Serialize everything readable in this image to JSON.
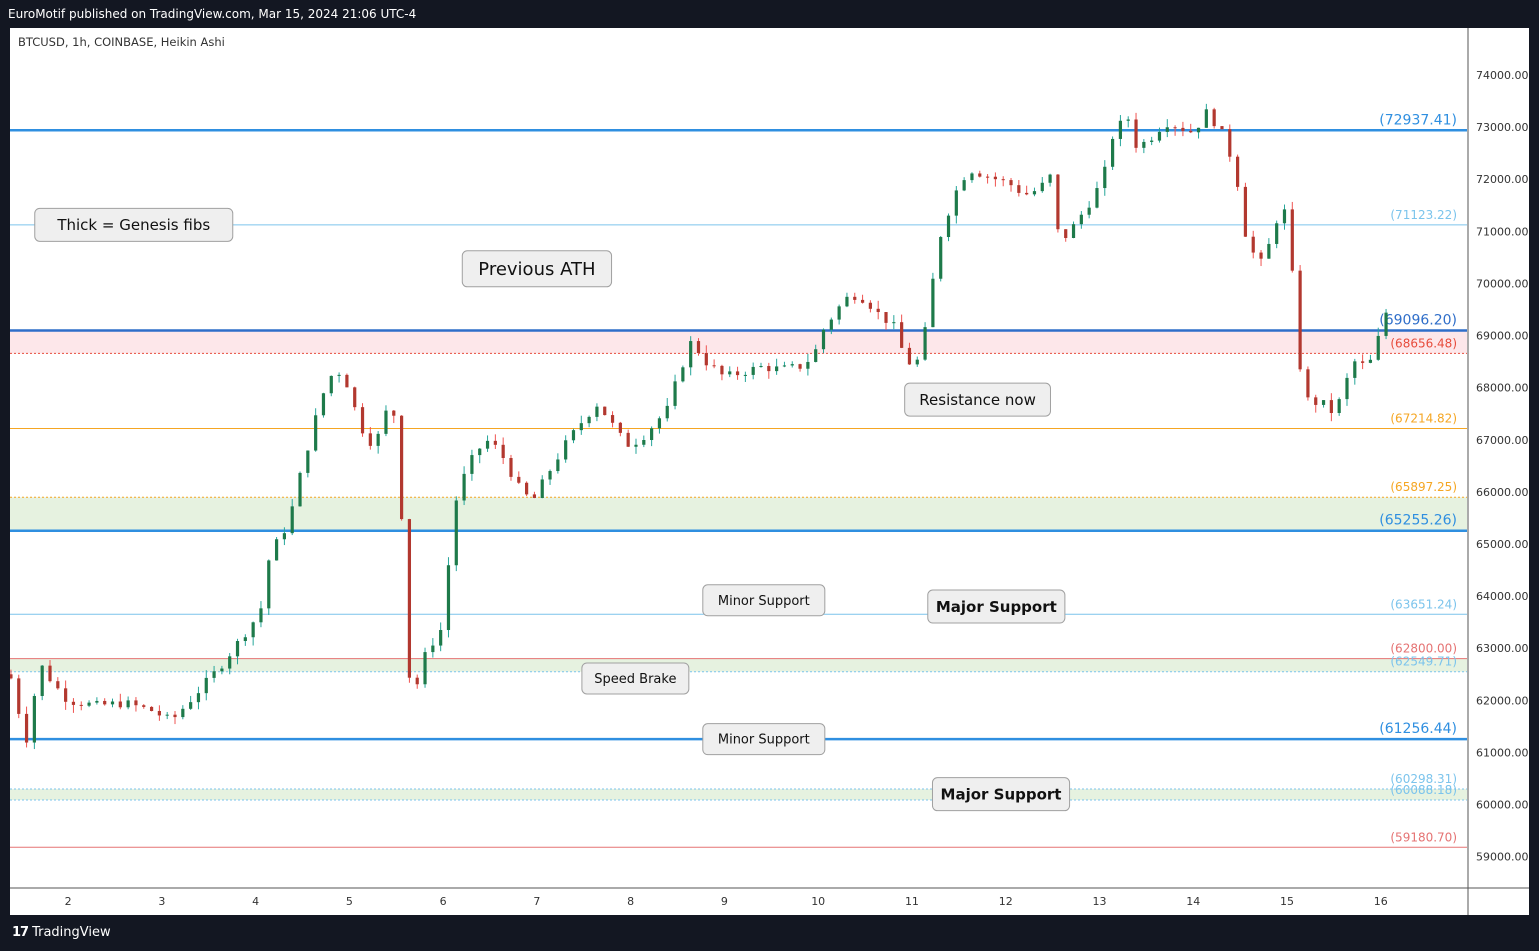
{
  "header": {
    "published_text": "EuroMotif published on TradingView.com, Mar 15, 2024 21:06 UTC-4"
  },
  "footer": {
    "brand": "TradingView",
    "logo_icon": "tradingview-logo-icon"
  },
  "chart_data": {
    "type": "candlestick",
    "symbol_label": "BTCUSD, 1h, COINBASE, Heikin Ashi",
    "ylim": [
      58400,
      74900
    ],
    "y_ticks": [
      "74000.00",
      "73000.00",
      "72000.00",
      "71000.00",
      "70000.00",
      "69000.00",
      "68000.00",
      "67000.00",
      "66000.00",
      "65000.00",
      "64000.00",
      "63000.00",
      "62000.00",
      "61000.00",
      "60000.00",
      "59000.00"
    ],
    "x_ticks": [
      {
        "label": "2",
        "day": 2
      },
      {
        "label": "3",
        "day": 3
      },
      {
        "label": "4",
        "day": 4
      },
      {
        "label": "5",
        "day": 5
      },
      {
        "label": "6",
        "day": 6
      },
      {
        "label": "7",
        "day": 7
      },
      {
        "label": "8",
        "day": 8
      },
      {
        "label": "9",
        "day": 9
      },
      {
        "label": "10",
        "day": 10
      },
      {
        "label": "11",
        "day": 11
      },
      {
        "label": "12",
        "day": 12
      },
      {
        "label": "13",
        "day": 13
      },
      {
        "label": "14",
        "day": 14
      },
      {
        "label": "15",
        "day": 15
      },
      {
        "label": "16",
        "day": 16
      }
    ],
    "xlim_days": [
      1.38,
      16.92
    ],
    "colors": {
      "up": "#26a69a",
      "down": "#ef5350",
      "up_body": "#1e7a4a",
      "down_body": "#b2382f"
    },
    "levels": [
      {
        "label": "(72937.41)",
        "value": 72937.41,
        "color": "#2f8fe0",
        "width": 2.5
      },
      {
        "label": "(71123.22)",
        "value": 71123.22,
        "color": "#7cc4ec",
        "width": 1
      },
      {
        "label": "(69096.20)",
        "value": 69096.2,
        "color": "#2f6ec9",
        "width": 2.5
      },
      {
        "label": "(68656.48)",
        "value": 68656.48,
        "color": "#e74c3c",
        "width": 1,
        "dash": true
      },
      {
        "label": "(67214.82)",
        "value": 67214.82,
        "color": "#f5a623",
        "width": 1
      },
      {
        "label": "(65897.25)",
        "value": 65897.25,
        "color": "#f5a623",
        "width": 1,
        "dash": true
      },
      {
        "label": "(65255.26)",
        "value": 65255.26,
        "color": "#2f8fe0",
        "width": 2.5
      },
      {
        "label": "(63651.24)",
        "value": 63651.24,
        "color": "#7cc4ec",
        "width": 1
      },
      {
        "label": "(62800.00)",
        "value": 62800.0,
        "color": "#e57373",
        "width": 1
      },
      {
        "label": "(62549.71)",
        "value": 62549.71,
        "color": "#7cc4ec",
        "width": 1,
        "dash": true
      },
      {
        "label": "(61256.44)",
        "value": 61256.44,
        "color": "#2f8fe0",
        "width": 2.5
      },
      {
        "label": "(60298.31)",
        "value": 60298.31,
        "color": "#7cc4ec",
        "width": 1,
        "dash": true
      },
      {
        "label": "(60088.18)",
        "value": 60088.18,
        "color": "#7cc4ec",
        "width": 1,
        "dash": true
      },
      {
        "label": "(59180.70)",
        "value": 59180.7,
        "color": "#e57373",
        "width": 1
      }
    ],
    "zones": [
      {
        "from": 68656.48,
        "to": 69096.2,
        "color": "#fde7ea"
      },
      {
        "from": 65255.26,
        "to": 65897.25,
        "color": "#e6f2e0"
      },
      {
        "from": 62549.71,
        "to": 62800.0,
        "color": "#e6f2e0"
      },
      {
        "from": 60088.18,
        "to": 60298.31,
        "color": "#e6f2e0"
      }
    ],
    "annotations": [
      {
        "text": "Thick = Genesis fibs",
        "day": 2.7,
        "price": 71123,
        "bold": false,
        "size": 15
      },
      {
        "text": "Previous ATH",
        "day": 7.0,
        "price": 70280,
        "bold": false,
        "size": 18
      },
      {
        "text": "Resistance now",
        "day": 11.7,
        "price": 67770,
        "bold": false,
        "size": 15
      },
      {
        "text": "Major Support",
        "day": 11.9,
        "price": 63800,
        "bold": true,
        "size": 15
      },
      {
        "text": "Minor Support",
        "day": 9.42,
        "price": 63920,
        "bold": false,
        "size": 13
      },
      {
        "text": "Speed Brake",
        "day": 8.05,
        "price": 62420,
        "bold": false,
        "size": 13
      },
      {
        "text": "Minor Support",
        "day": 9.42,
        "price": 61256,
        "bold": false,
        "size": 13
      },
      {
        "text": "Major Support",
        "day": 11.95,
        "price": 60200,
        "bold": true,
        "size": 15
      }
    ],
    "candles_path": [
      [
        1.38,
        62500
      ],
      [
        1.55,
        61200
      ],
      [
        1.7,
        62700
      ],
      [
        1.85,
        62300
      ],
      [
        2.0,
        62000
      ],
      [
        2.3,
        61900
      ],
      [
        2.6,
        61950
      ],
      [
        2.9,
        61800
      ],
      [
        3.1,
        61600
      ],
      [
        3.3,
        62000
      ],
      [
        3.6,
        62600
      ],
      [
        3.85,
        63200
      ],
      [
        4.05,
        63700
      ],
      [
        4.15,
        64800
      ],
      [
        4.35,
        65400
      ],
      [
        4.5,
        66500
      ],
      [
        4.7,
        67800
      ],
      [
        4.85,
        68400
      ],
      [
        5.0,
        68000
      ],
      [
        5.1,
        67300
      ],
      [
        5.25,
        66900
      ],
      [
        5.35,
        67200
      ],
      [
        5.45,
        68000
      ],
      [
        5.55,
        65800
      ],
      [
        5.65,
        62100
      ],
      [
        5.75,
        62400
      ],
      [
        5.85,
        63200
      ],
      [
        5.95,
        63000
      ],
      [
        6.05,
        64500
      ],
      [
        6.15,
        66000
      ],
      [
        6.3,
        66600
      ],
      [
        6.45,
        67000
      ],
      [
        6.6,
        66800
      ],
      [
        6.8,
        66100
      ],
      [
        6.95,
        65800
      ],
      [
        7.1,
        66300
      ],
      [
        7.3,
        66900
      ],
      [
        7.5,
        67400
      ],
      [
        7.65,
        67700
      ],
      [
        7.8,
        67300
      ],
      [
        7.95,
        66900
      ],
      [
        8.1,
        67000
      ],
      [
        8.25,
        67300
      ],
      [
        8.4,
        67600
      ],
      [
        8.5,
        68200
      ],
      [
        8.65,
        68900
      ],
      [
        8.8,
        68500
      ],
      [
        9.0,
        68200
      ],
      [
        9.2,
        68300
      ],
      [
        9.4,
        68400
      ],
      [
        9.6,
        68350
      ],
      [
        9.8,
        68400
      ],
      [
        9.95,
        68600
      ],
      [
        10.05,
        69100
      ],
      [
        10.2,
        69500
      ],
      [
        10.35,
        69800
      ],
      [
        10.5,
        69700
      ],
      [
        10.65,
        69400
      ],
      [
        10.8,
        69200
      ],
      [
        10.9,
        68700
      ],
      [
        11.0,
        68400
      ],
      [
        11.1,
        68600
      ],
      [
        11.2,
        69800
      ],
      [
        11.3,
        70900
      ],
      [
        11.45,
        71700
      ],
      [
        11.6,
        72200
      ],
      [
        11.75,
        72100
      ],
      [
        11.9,
        72000
      ],
      [
        12.05,
        71900
      ],
      [
        12.2,
        71700
      ],
      [
        12.35,
        71800
      ],
      [
        12.5,
        72100
      ],
      [
        12.55,
        71000
      ],
      [
        12.65,
        70900
      ],
      [
        12.8,
        71300
      ],
      [
        12.95,
        71700
      ],
      [
        13.05,
        72100
      ],
      [
        13.15,
        72900
      ],
      [
        13.3,
        73200
      ],
      [
        13.4,
        72600
      ],
      [
        13.55,
        72800
      ],
      [
        13.7,
        73100
      ],
      [
        13.85,
        73000
      ],
      [
        14.0,
        72900
      ],
      [
        14.15,
        73300
      ],
      [
        14.3,
        72900
      ],
      [
        14.45,
        72200
      ],
      [
        14.55,
        71000
      ],
      [
        14.7,
        70300
      ],
      [
        14.85,
        70900
      ],
      [
        14.95,
        71700
      ],
      [
        15.05,
        70300
      ],
      [
        15.15,
        68200
      ],
      [
        15.25,
        67600
      ],
      [
        15.35,
        67800
      ],
      [
        15.45,
        67500
      ],
      [
        15.55,
        67700
      ],
      [
        15.65,
        68200
      ],
      [
        15.75,
        68600
      ],
      [
        15.85,
        68300
      ],
      [
        15.95,
        68800
      ],
      [
        16.05,
        69400
      ],
      [
        16.08,
        69600
      ]
    ]
  }
}
